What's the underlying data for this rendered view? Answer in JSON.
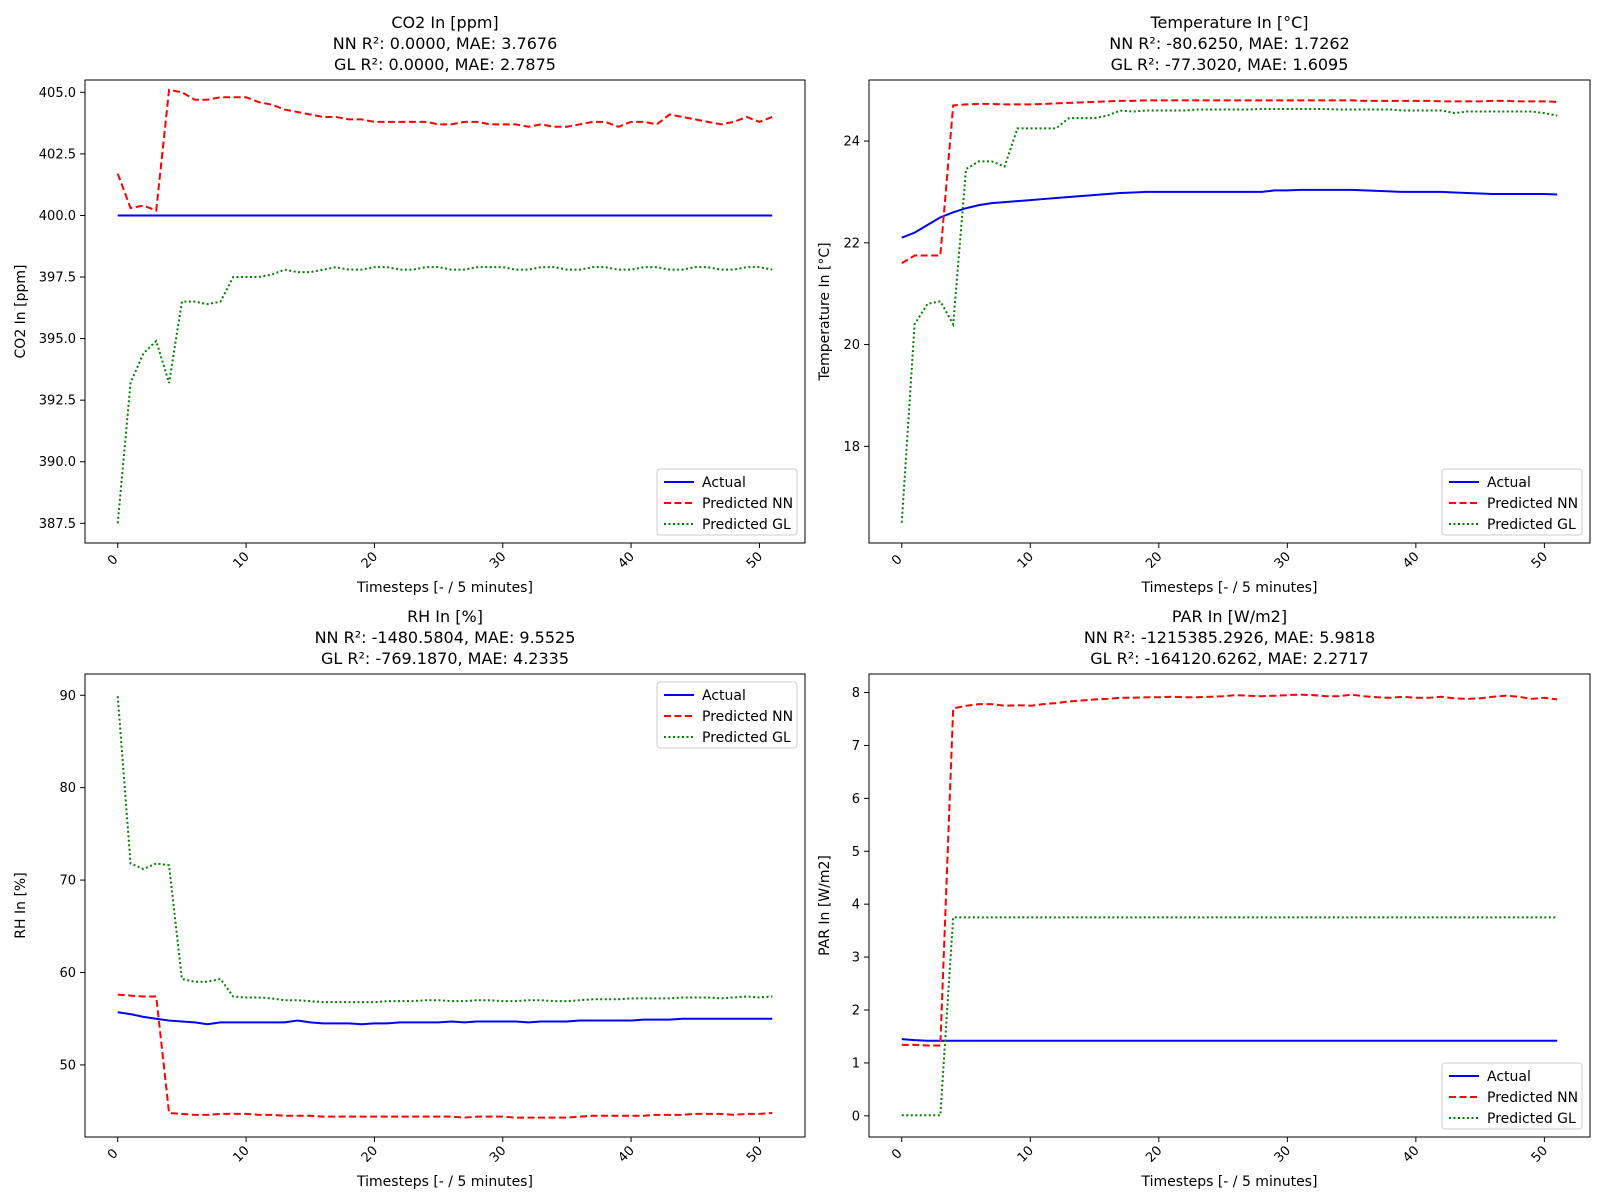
{
  "chart_data": [
    {
      "type": "line",
      "title": "CO2 In [ppm]",
      "subtitle_nn": "NN R²: 0.0000, MAE: 3.7676",
      "subtitle_gl": "GL R²: 0.0000, MAE: 2.7875",
      "xlabel": "Timesteps [- / 5 minutes]",
      "ylabel": "CO2 In [ppm]",
      "xlim": [
        -2.55,
        53.55
      ],
      "ylim": [
        386.7,
        405.5
      ],
      "xticks": [
        0,
        10,
        20,
        30,
        40,
        50
      ],
      "yticks": [
        387.5,
        390.0,
        392.5,
        395.0,
        397.5,
        400.0,
        402.5,
        405.0
      ],
      "ytick_labels": [
        "387.5",
        "390.0",
        "392.5",
        "395.0",
        "397.5",
        "400.0",
        "402.5",
        "405.0"
      ],
      "legend_position": "lower-right",
      "grid": false,
      "series": [
        {
          "name": "Actual",
          "color": "#0000ff",
          "dash": "solid",
          "values": [
            400.0,
            400.0,
            400.0,
            400.0,
            400.0,
            400.0,
            400.0,
            400.0,
            400.0,
            400.0,
            400.0,
            400.0,
            400.0,
            400.0,
            400.0,
            400.0,
            400.0,
            400.0,
            400.0,
            400.0,
            400.0,
            400.0,
            400.0,
            400.0,
            400.0,
            400.0,
            400.0,
            400.0,
            400.0,
            400.0,
            400.0,
            400.0,
            400.0,
            400.0,
            400.0,
            400.0,
            400.0,
            400.0,
            400.0,
            400.0,
            400.0,
            400.0,
            400.0,
            400.0,
            400.0,
            400.0,
            400.0,
            400.0,
            400.0,
            400.0,
            400.0,
            400.0
          ]
        },
        {
          "name": "Predicted NN",
          "color": "#ff0000",
          "dash": "dashed",
          "values": [
            401.7,
            400.3,
            400.4,
            400.2,
            405.1,
            405.0,
            404.7,
            404.7,
            404.8,
            404.8,
            404.8,
            404.6,
            404.5,
            404.3,
            404.2,
            404.1,
            404.0,
            404.0,
            403.9,
            403.9,
            403.8,
            403.8,
            403.8,
            403.8,
            403.8,
            403.7,
            403.7,
            403.8,
            403.8,
            403.7,
            403.7,
            403.7,
            403.6,
            403.7,
            403.6,
            403.6,
            403.7,
            403.8,
            403.8,
            403.6,
            403.8,
            403.8,
            403.7,
            404.1,
            404.0,
            403.9,
            403.8,
            403.7,
            403.8,
            404.0,
            403.8,
            404.0
          ]
        },
        {
          "name": "Predicted GL",
          "color": "#008000",
          "dash": "dotted",
          "values": [
            387.5,
            393.2,
            394.4,
            394.9,
            393.2,
            396.5,
            396.5,
            396.4,
            396.5,
            397.5,
            397.5,
            397.5,
            397.6,
            397.8,
            397.7,
            397.7,
            397.8,
            397.9,
            397.8,
            397.8,
            397.9,
            397.9,
            397.8,
            397.8,
            397.9,
            397.9,
            397.8,
            397.8,
            397.9,
            397.9,
            397.9,
            397.8,
            397.8,
            397.9,
            397.9,
            397.8,
            397.8,
            397.9,
            397.9,
            397.8,
            397.8,
            397.9,
            397.9,
            397.8,
            397.8,
            397.9,
            397.9,
            397.8,
            397.8,
            397.9,
            397.9,
            397.8
          ]
        }
      ]
    },
    {
      "type": "line",
      "title": "Temperature In [°C]",
      "subtitle_nn": "NN R²: -80.6250, MAE: 1.7262",
      "subtitle_gl": "GL R²: -77.3020, MAE: 1.6095",
      "xlabel": "Timesteps [- / 5 minutes]",
      "ylabel": "Temperature In [°C]",
      "xlim": [
        -2.55,
        53.55
      ],
      "ylim": [
        16.1,
        25.2
      ],
      "xticks": [
        0,
        10,
        20,
        30,
        40,
        50
      ],
      "yticks": [
        18,
        20,
        22,
        24
      ],
      "ytick_labels": [
        "18",
        "20",
        "22",
        "24"
      ],
      "legend_position": "lower-right",
      "grid": false,
      "series": [
        {
          "name": "Actual",
          "color": "#0000ff",
          "dash": "solid",
          "values": [
            22.1,
            22.2,
            22.35,
            22.5,
            22.6,
            22.68,
            22.74,
            22.78,
            22.8,
            22.82,
            22.84,
            22.86,
            22.88,
            22.9,
            22.92,
            22.94,
            22.96,
            22.98,
            22.99,
            23.0,
            23.0,
            23.0,
            23.0,
            23.0,
            23.0,
            23.0,
            23.0,
            23.0,
            23.0,
            23.03,
            23.03,
            23.04,
            23.04,
            23.04,
            23.04,
            23.04,
            23.03,
            23.02,
            23.01,
            23.0,
            23.0,
            23.0,
            23.0,
            22.99,
            22.98,
            22.97,
            22.96,
            22.96,
            22.96,
            22.96,
            22.96,
            22.95
          ]
        },
        {
          "name": "Predicted NN",
          "color": "#ff0000",
          "dash": "dashed",
          "values": [
            21.6,
            21.75,
            21.75,
            21.75,
            24.7,
            24.72,
            24.73,
            24.73,
            24.72,
            24.72,
            24.72,
            24.73,
            24.74,
            24.75,
            24.76,
            24.77,
            24.78,
            24.79,
            24.79,
            24.8,
            24.8,
            24.8,
            24.8,
            24.8,
            24.8,
            24.8,
            24.8,
            24.8,
            24.8,
            24.8,
            24.8,
            24.8,
            24.8,
            24.8,
            24.8,
            24.8,
            24.79,
            24.79,
            24.79,
            24.79,
            24.79,
            24.79,
            24.78,
            24.78,
            24.78,
            24.78,
            24.79,
            24.79,
            24.78,
            24.78,
            24.78,
            24.77
          ]
        },
        {
          "name": "Predicted GL",
          "color": "#008000",
          "dash": "dotted",
          "values": [
            16.5,
            20.4,
            20.8,
            20.85,
            20.4,
            23.45,
            23.6,
            23.6,
            23.5,
            24.25,
            24.25,
            24.25,
            24.25,
            24.45,
            24.45,
            24.45,
            24.5,
            24.6,
            24.58,
            24.6,
            24.6,
            24.6,
            24.6,
            24.62,
            24.62,
            24.62,
            24.62,
            24.62,
            24.63,
            24.63,
            24.63,
            24.63,
            24.63,
            24.63,
            24.62,
            24.62,
            24.62,
            24.62,
            24.62,
            24.6,
            24.6,
            24.6,
            24.6,
            24.55,
            24.58,
            24.58,
            24.58,
            24.58,
            24.58,
            24.58,
            24.55,
            24.5
          ]
        }
      ]
    },
    {
      "type": "line",
      "title": "RH In [%]",
      "subtitle_nn": "NN R²: -1480.5804, MAE: 9.5525",
      "subtitle_gl": "GL R²: -769.1870, MAE: 4.2335",
      "xlabel": "Timesteps [- / 5 minutes]",
      "ylabel": "RH In [%]",
      "xlim": [
        -2.55,
        53.55
      ],
      "ylim": [
        42.2,
        92.3
      ],
      "xticks": [
        0,
        10,
        20,
        30,
        40,
        50
      ],
      "yticks": [
        50,
        60,
        70,
        80,
        90
      ],
      "ytick_labels": [
        "50",
        "60",
        "70",
        "80",
        "90"
      ],
      "legend_position": "upper-right",
      "grid": false,
      "series": [
        {
          "name": "Actual",
          "color": "#0000ff",
          "dash": "solid",
          "values": [
            55.7,
            55.5,
            55.2,
            55.0,
            54.8,
            54.7,
            54.6,
            54.4,
            54.6,
            54.6,
            54.6,
            54.6,
            54.6,
            54.6,
            54.8,
            54.6,
            54.5,
            54.5,
            54.5,
            54.4,
            54.5,
            54.5,
            54.6,
            54.6,
            54.6,
            54.6,
            54.7,
            54.6,
            54.7,
            54.7,
            54.7,
            54.7,
            54.6,
            54.7,
            54.7,
            54.7,
            54.8,
            54.8,
            54.8,
            54.8,
            54.8,
            54.9,
            54.9,
            54.9,
            55.0,
            55.0,
            55.0,
            55.0,
            55.0,
            55.0,
            55.0,
            55.0
          ]
        },
        {
          "name": "Predicted NN",
          "color": "#ff0000",
          "dash": "dashed",
          "values": [
            57.6,
            57.5,
            57.4,
            57.4,
            44.8,
            44.7,
            44.6,
            44.6,
            44.7,
            44.7,
            44.7,
            44.6,
            44.6,
            44.5,
            44.5,
            44.5,
            44.4,
            44.4,
            44.4,
            44.4,
            44.4,
            44.4,
            44.4,
            44.4,
            44.4,
            44.4,
            44.4,
            44.3,
            44.4,
            44.4,
            44.4,
            44.3,
            44.3,
            44.3,
            44.3,
            44.3,
            44.4,
            44.5,
            44.5,
            44.5,
            44.5,
            44.5,
            44.6,
            44.6,
            44.6,
            44.7,
            44.7,
            44.7,
            44.6,
            44.7,
            44.7,
            44.8
          ]
        },
        {
          "name": "Predicted GL",
          "color": "#008000",
          "dash": "dotted",
          "values": [
            89.9,
            71.8,
            71.2,
            71.8,
            71.6,
            59.3,
            59.0,
            59.0,
            59.3,
            57.4,
            57.3,
            57.3,
            57.2,
            57.0,
            57.0,
            56.9,
            56.8,
            56.8,
            56.8,
            56.8,
            56.8,
            56.9,
            56.9,
            56.9,
            57.0,
            57.0,
            56.9,
            56.9,
            57.0,
            57.0,
            56.9,
            56.9,
            57.0,
            57.0,
            56.9,
            56.9,
            57.0,
            57.1,
            57.1,
            57.1,
            57.2,
            57.2,
            57.2,
            57.2,
            57.3,
            57.3,
            57.3,
            57.2,
            57.3,
            57.4,
            57.3,
            57.4
          ]
        }
      ]
    },
    {
      "type": "line",
      "title": "PAR In [W/m2]",
      "subtitle_nn": "NN R²: -1215385.2926, MAE: 5.9818",
      "subtitle_gl": "GL R²: -164120.6262, MAE: 2.2717",
      "xlabel": "Timesteps [- / 5 minutes]",
      "ylabel": "PAR In [W/m2]",
      "xlim": [
        -2.55,
        53.55
      ],
      "ylim": [
        -0.4,
        8.35
      ],
      "xticks": [
        0,
        10,
        20,
        30,
        40,
        50
      ],
      "yticks": [
        0,
        1,
        2,
        3,
        4,
        5,
        6,
        7,
        8
      ],
      "ytick_labels": [
        "0",
        "1",
        "2",
        "3",
        "4",
        "5",
        "6",
        "7",
        "8"
      ],
      "legend_position": "lower-right",
      "grid": false,
      "series": [
        {
          "name": "Actual",
          "color": "#0000ff",
          "dash": "solid",
          "values": [
            1.45,
            1.43,
            1.42,
            1.42,
            1.42,
            1.42,
            1.42,
            1.42,
            1.42,
            1.42,
            1.42,
            1.42,
            1.42,
            1.42,
            1.42,
            1.42,
            1.42,
            1.42,
            1.42,
            1.42,
            1.42,
            1.42,
            1.42,
            1.42,
            1.42,
            1.42,
            1.42,
            1.42,
            1.42,
            1.42,
            1.42,
            1.42,
            1.42,
            1.42,
            1.42,
            1.42,
            1.42,
            1.42,
            1.42,
            1.42,
            1.42,
            1.42,
            1.42,
            1.42,
            1.42,
            1.42,
            1.42,
            1.42,
            1.42,
            1.42,
            1.42,
            1.42
          ]
        },
        {
          "name": "Predicted NN",
          "color": "#ff0000",
          "dash": "dashed",
          "values": [
            1.34,
            1.34,
            1.33,
            1.33,
            7.7,
            7.75,
            7.78,
            7.78,
            7.75,
            7.76,
            7.75,
            7.78,
            7.8,
            7.83,
            7.85,
            7.87,
            7.88,
            7.9,
            7.9,
            7.91,
            7.91,
            7.92,
            7.91,
            7.91,
            7.92,
            7.93,
            7.95,
            7.94,
            7.93,
            7.94,
            7.95,
            7.96,
            7.95,
            7.93,
            7.93,
            7.96,
            7.93,
            7.91,
            7.9,
            7.92,
            7.9,
            7.9,
            7.92,
            7.89,
            7.88,
            7.89,
            7.92,
            7.94,
            7.92,
            7.88,
            7.9,
            7.87
          ]
        },
        {
          "name": "Predicted GL",
          "color": "#008000",
          "dash": "dotted",
          "values": [
            0.01,
            0.01,
            0.01,
            0.01,
            3.75,
            3.75,
            3.75,
            3.75,
            3.75,
            3.75,
            3.75,
            3.75,
            3.75,
            3.75,
            3.75,
            3.75,
            3.75,
            3.75,
            3.75,
            3.75,
            3.75,
            3.75,
            3.75,
            3.75,
            3.75,
            3.75,
            3.75,
            3.75,
            3.75,
            3.75,
            3.75,
            3.75,
            3.75,
            3.75,
            3.75,
            3.75,
            3.75,
            3.75,
            3.75,
            3.75,
            3.75,
            3.75,
            3.75,
            3.75,
            3.75,
            3.75,
            3.75,
            3.75,
            3.75,
            3.75,
            3.75,
            3.75
          ]
        }
      ]
    }
  ]
}
